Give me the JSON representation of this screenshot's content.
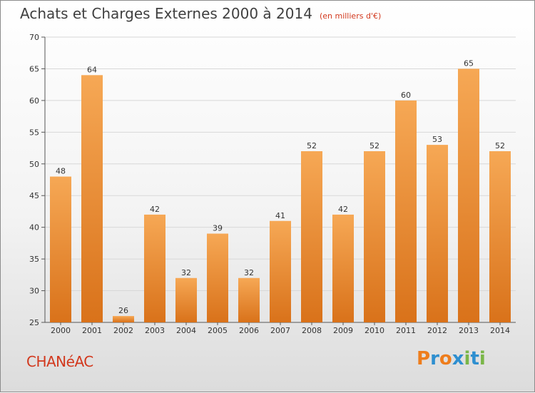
{
  "header": {
    "title": "Achats et Charges Externes 2000 à 2014",
    "unit_note": "(en milliers d'€)"
  },
  "footer": {
    "place_name": "CHANéAC",
    "brand": "Proxiti",
    "brand_colors": [
      "#ee7d1c",
      "#2e8fd0",
      "#ee7d1c",
      "#2e8fd0",
      "#7ab648",
      "#2e8fd0",
      "#7ab648"
    ]
  },
  "chart_data": {
    "type": "bar",
    "title": "Achats et Charges Externes 2000 à 2014",
    "subtitle": "(en milliers d'€)",
    "xlabel": "",
    "ylabel": "",
    "categories": [
      "2000",
      "2001",
      "2002",
      "2003",
      "2004",
      "2005",
      "2006",
      "2007",
      "2008",
      "2009",
      "2010",
      "2011",
      "2012",
      "2013",
      "2014"
    ],
    "values": [
      48,
      64,
      26,
      42,
      32,
      39,
      32,
      41,
      52,
      42,
      52,
      60,
      53,
      65,
      52
    ],
    "ylim": [
      25,
      70
    ],
    "yticks": [
      25,
      30,
      35,
      40,
      45,
      50,
      55,
      60,
      65,
      70
    ],
    "grid": true,
    "bar_color_top": "#f6a855",
    "bar_color_bottom": "#d9721a",
    "show_value_labels": true
  }
}
